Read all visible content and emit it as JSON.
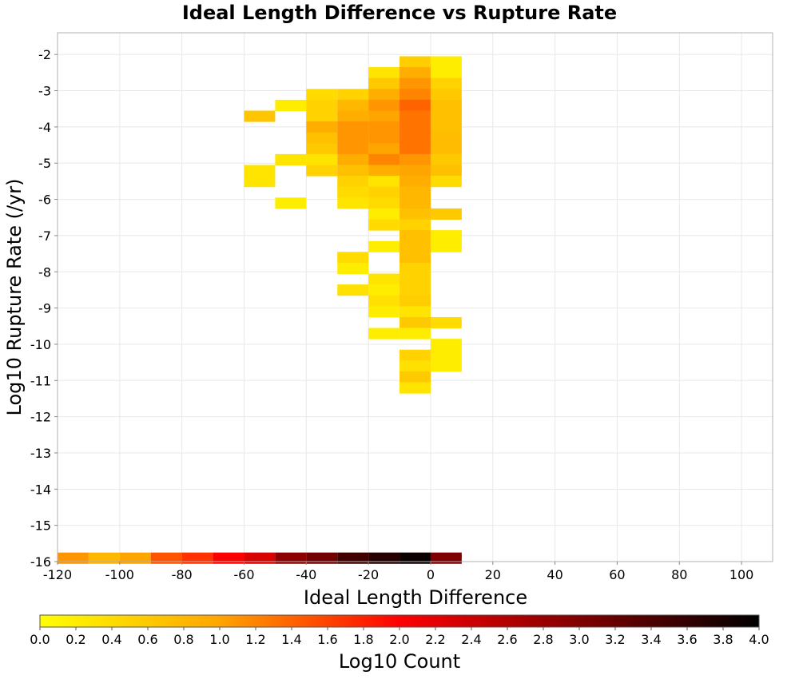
{
  "chart_data": {
    "type": "heatmap",
    "title": "Ideal Length Difference vs Rupture Rate",
    "xlabel": "Ideal Length Difference",
    "ylabel": "Log10 Rupture Rate (/yr)",
    "xlim": [
      -120,
      110
    ],
    "ylim": [
      -16,
      -1.4
    ],
    "x_ticks": [
      "-120",
      "-100",
      "-80",
      "-60",
      "-40",
      "-20",
      "0",
      "20",
      "40",
      "60",
      "80",
      "100"
    ],
    "y_ticks": [
      "-2",
      "-3",
      "-4",
      "-5",
      "-6",
      "-7",
      "-8",
      "-9",
      "-10",
      "-11",
      "-12",
      "-13",
      "-14",
      "-15",
      "-16"
    ],
    "grid": true,
    "bin_width_x": 10,
    "bin_height_y": 0.3,
    "colorbar": {
      "label": "Log10 Count",
      "range": [
        0.0,
        4.0
      ],
      "ticks": [
        "0.0",
        "0.2",
        "0.4",
        "0.6",
        "0.8",
        "1.0",
        "1.2",
        "1.4",
        "1.6",
        "1.8",
        "2.0",
        "2.2",
        "2.4",
        "2.6",
        "2.8",
        "3.0",
        "3.2",
        "3.4",
        "3.6",
        "3.8",
        "4.0"
      ],
      "colormap": [
        "#ffff00",
        "#ffa500",
        "#ff0000",
        "#800000",
        "#000000"
      ]
    },
    "cells": [
      {
        "x": -5,
        "y": -2.2,
        "v": 0.55
      },
      {
        "x": 5,
        "y": -2.2,
        "v": 0.2
      },
      {
        "x": 5,
        "y": -2.5,
        "v": 0.2
      },
      {
        "x": -15,
        "y": -2.5,
        "v": 0.3
      },
      {
        "x": -5,
        "y": -2.5,
        "v": 0.9
      },
      {
        "x": -15,
        "y": -2.8,
        "v": 0.6
      },
      {
        "x": -5,
        "y": -2.8,
        "v": 1.1
      },
      {
        "x": 5,
        "y": -2.8,
        "v": 0.5
      },
      {
        "x": -35,
        "y": -3.1,
        "v": 0.4
      },
      {
        "x": -25,
        "y": -3.1,
        "v": 0.5
      },
      {
        "x": -15,
        "y": -3.1,
        "v": 0.9
      },
      {
        "x": -5,
        "y": -3.1,
        "v": 1.2
      },
      {
        "x": 5,
        "y": -3.1,
        "v": 0.6
      },
      {
        "x": -45,
        "y": -3.4,
        "v": 0.2
      },
      {
        "x": -35,
        "y": -3.4,
        "v": 0.5
      },
      {
        "x": -25,
        "y": -3.4,
        "v": 0.8
      },
      {
        "x": -15,
        "y": -3.4,
        "v": 1.1
      },
      {
        "x": -5,
        "y": -3.4,
        "v": 1.4
      },
      {
        "x": 5,
        "y": -3.4,
        "v": 0.7
      },
      {
        "x": -55,
        "y": -3.7,
        "v": 0.65
      },
      {
        "x": -35,
        "y": -3.7,
        "v": 0.5
      },
      {
        "x": -25,
        "y": -3.7,
        "v": 0.9
      },
      {
        "x": -15,
        "y": -3.7,
        "v": 1.0
      },
      {
        "x": -5,
        "y": -3.7,
        "v": 1.3
      },
      {
        "x": 5,
        "y": -3.7,
        "v": 0.7
      },
      {
        "x": -35,
        "y": -4.0,
        "v": 0.9
      },
      {
        "x": -25,
        "y": -4.0,
        "v": 1.1
      },
      {
        "x": -15,
        "y": -4.0,
        "v": 1.1
      },
      {
        "x": -5,
        "y": -4.0,
        "v": 1.3
      },
      {
        "x": 5,
        "y": -4.0,
        "v": 0.7
      },
      {
        "x": -35,
        "y": -4.3,
        "v": 0.7
      },
      {
        "x": -25,
        "y": -4.3,
        "v": 1.1
      },
      {
        "x": -15,
        "y": -4.3,
        "v": 1.1
      },
      {
        "x": -5,
        "y": -4.3,
        "v": 1.3
      },
      {
        "x": 5,
        "y": -4.3,
        "v": 0.75
      },
      {
        "x": -35,
        "y": -4.6,
        "v": 0.6
      },
      {
        "x": -25,
        "y": -4.6,
        "v": 1.1
      },
      {
        "x": -15,
        "y": -4.6,
        "v": 1.0
      },
      {
        "x": -5,
        "y": -4.6,
        "v": 1.3
      },
      {
        "x": 5,
        "y": -4.6,
        "v": 0.75
      },
      {
        "x": -45,
        "y": -4.9,
        "v": 0.3
      },
      {
        "x": -35,
        "y": -4.9,
        "v": 0.3
      },
      {
        "x": -25,
        "y": -4.9,
        "v": 0.9
      },
      {
        "x": -15,
        "y": -4.9,
        "v": 1.2
      },
      {
        "x": -5,
        "y": -4.9,
        "v": 1.1
      },
      {
        "x": 5,
        "y": -4.9,
        "v": 0.6
      },
      {
        "x": -55,
        "y": -5.2,
        "v": 0.3
      },
      {
        "x": -35,
        "y": -5.2,
        "v": 0.5
      },
      {
        "x": -25,
        "y": -5.2,
        "v": 0.7
      },
      {
        "x": -15,
        "y": -5.2,
        "v": 0.9
      },
      {
        "x": -5,
        "y": -5.2,
        "v": 1.0
      },
      {
        "x": 5,
        "y": -5.2,
        "v": 0.7
      },
      {
        "x": -55,
        "y": -5.5,
        "v": 0.3
      },
      {
        "x": -25,
        "y": -5.5,
        "v": 0.5
      },
      {
        "x": -15,
        "y": -5.5,
        "v": 0.3
      },
      {
        "x": -5,
        "y": -5.5,
        "v": 0.9
      },
      {
        "x": 5,
        "y": -5.5,
        "v": 0.4
      },
      {
        "x": -25,
        "y": -5.8,
        "v": 0.4
      },
      {
        "x": -15,
        "y": -5.8,
        "v": 0.5
      },
      {
        "x": -5,
        "y": -5.8,
        "v": 0.8
      },
      {
        "x": -45,
        "y": -6.1,
        "v": 0.2
      },
      {
        "x": -25,
        "y": -6.1,
        "v": 0.3
      },
      {
        "x": -15,
        "y": -6.1,
        "v": 0.4
      },
      {
        "x": -5,
        "y": -6.1,
        "v": 0.8
      },
      {
        "x": -15,
        "y": -6.4,
        "v": 0.2
      },
      {
        "x": -5,
        "y": -6.4,
        "v": 0.7
      },
      {
        "x": 5,
        "y": -6.4,
        "v": 0.6
      },
      {
        "x": -15,
        "y": -6.7,
        "v": 0.4
      },
      {
        "x": -5,
        "y": -6.7,
        "v": 0.5
      },
      {
        "x": -5,
        "y": -7.0,
        "v": 0.7
      },
      {
        "x": 5,
        "y": -7.0,
        "v": 0.2
      },
      {
        "x": -15,
        "y": -7.3,
        "v": 0.2
      },
      {
        "x": -5,
        "y": -7.3,
        "v": 0.7
      },
      {
        "x": 5,
        "y": -7.3,
        "v": 0.2
      },
      {
        "x": -25,
        "y": -7.6,
        "v": 0.4
      },
      {
        "x": -5,
        "y": -7.6,
        "v": 0.7
      },
      {
        "x": -25,
        "y": -7.9,
        "v": 0.2
      },
      {
        "x": -5,
        "y": -7.9,
        "v": 0.5
      },
      {
        "x": -15,
        "y": -8.2,
        "v": 0.3
      },
      {
        "x": -5,
        "y": -8.2,
        "v": 0.5
      },
      {
        "x": -25,
        "y": -8.5,
        "v": 0.35
      },
      {
        "x": -15,
        "y": -8.5,
        "v": 0.2
      },
      {
        "x": -5,
        "y": -8.5,
        "v": 0.5
      },
      {
        "x": -15,
        "y": -8.8,
        "v": 0.35
      },
      {
        "x": -5,
        "y": -8.8,
        "v": 0.55
      },
      {
        "x": -15,
        "y": -9.1,
        "v": 0.2
      },
      {
        "x": -5,
        "y": -9.1,
        "v": 0.3
      },
      {
        "x": -5,
        "y": -9.4,
        "v": 0.6
      },
      {
        "x": 5,
        "y": -9.4,
        "v": 0.4
      },
      {
        "x": -15,
        "y": -9.7,
        "v": 0.2
      },
      {
        "x": -5,
        "y": -9.7,
        "v": 0.2
      },
      {
        "x": 5,
        "y": -10.0,
        "v": 0.2
      },
      {
        "x": -5,
        "y": -10.3,
        "v": 0.5
      },
      {
        "x": 5,
        "y": -10.3,
        "v": 0.2
      },
      {
        "x": -5,
        "y": -10.6,
        "v": 0.35
      },
      {
        "x": 5,
        "y": -10.6,
        "v": 0.2
      },
      {
        "x": -5,
        "y": -10.9,
        "v": 0.6
      },
      {
        "x": -5,
        "y": -11.2,
        "v": 0.3
      },
      {
        "x": -115,
        "y": -15.9,
        "v": 1.1
      },
      {
        "x": -105,
        "y": -15.9,
        "v": 0.8
      },
      {
        "x": -95,
        "y": -15.9,
        "v": 1.0
      },
      {
        "x": -85,
        "y": -15.9,
        "v": 1.5
      },
      {
        "x": -75,
        "y": -15.9,
        "v": 1.7
      },
      {
        "x": -65,
        "y": -15.9,
        "v": 2.0
      },
      {
        "x": -55,
        "y": -15.9,
        "v": 2.3
      },
      {
        "x": -45,
        "y": -15.9,
        "v": 2.9
      },
      {
        "x": -35,
        "y": -15.9,
        "v": 3.1
      },
      {
        "x": -25,
        "y": -15.9,
        "v": 3.5
      },
      {
        "x": -15,
        "y": -15.9,
        "v": 3.7
      },
      {
        "x": -5,
        "y": -15.9,
        "v": 3.9
      },
      {
        "x": 5,
        "y": -15.9,
        "v": 3.0
      }
    ]
  }
}
